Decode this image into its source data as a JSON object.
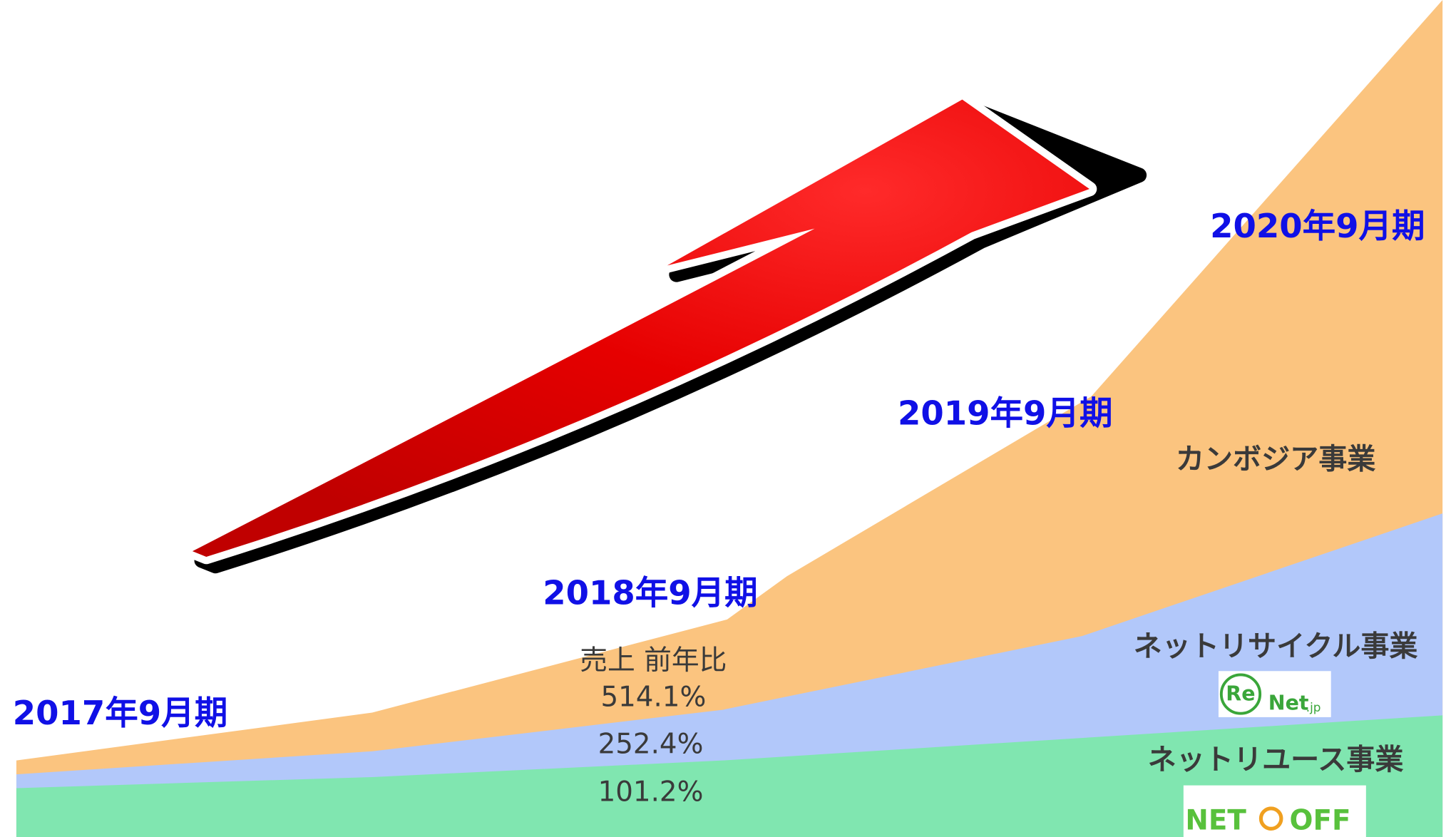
{
  "years": [
    "2017年9月期",
    "2018年9月期",
    "2019年9月期",
    "2020年9月期"
  ],
  "segments": [
    "カンボジア事業",
    "ネットリサイクル事業",
    "ネットリユース事業"
  ],
  "growth": {
    "label": "売上 前年比",
    "values": [
      "514.1%",
      "252.4%",
      "101.2%"
    ]
  },
  "logos": {
    "renet": [
      "Re",
      "Net",
      ".jp"
    ],
    "netoff": [
      "NET",
      "OFF"
    ]
  }
}
